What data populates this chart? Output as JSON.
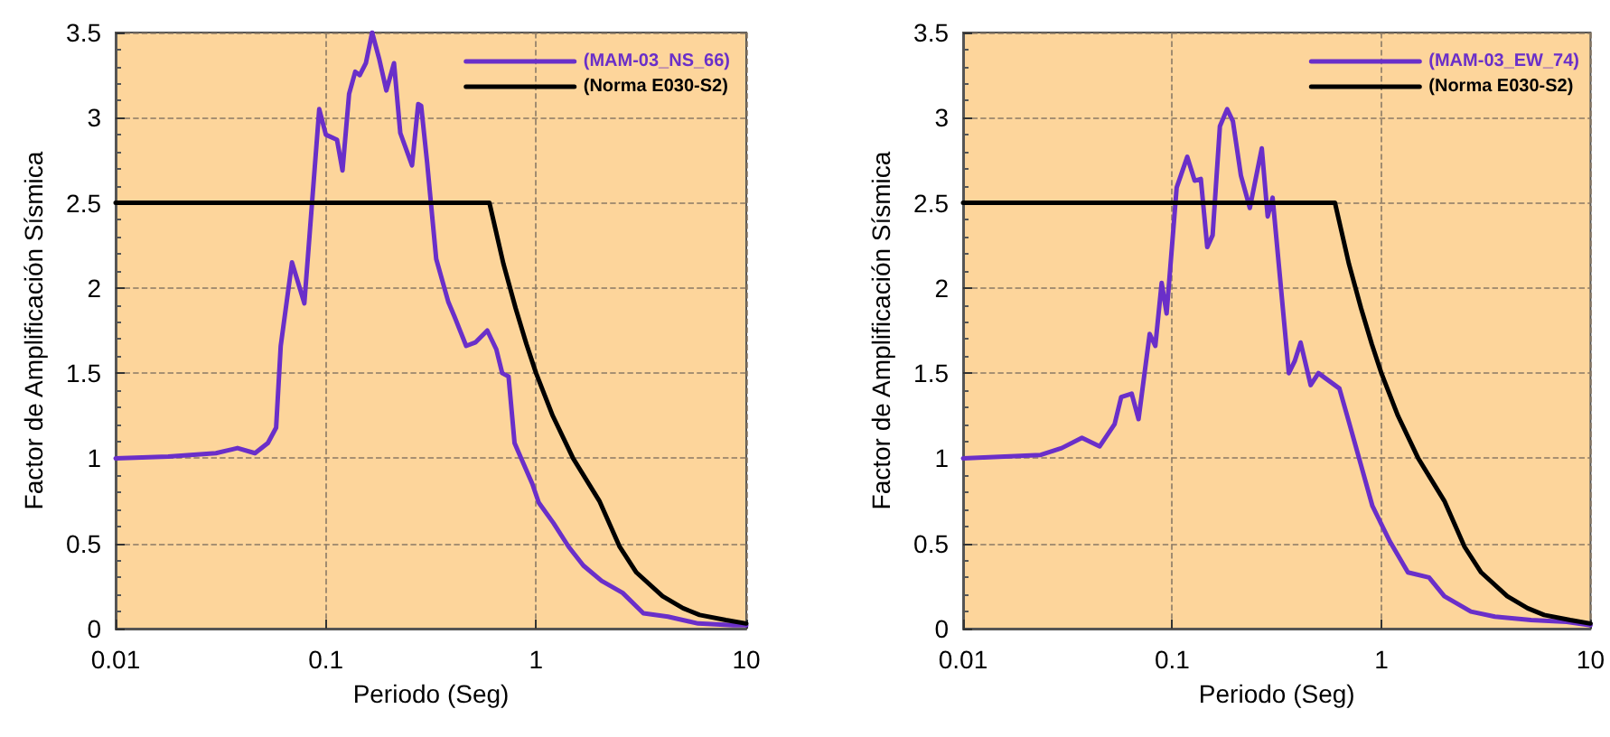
{
  "chart_data": [
    {
      "type": "line",
      "xlabel": "Periodo (Seg)",
      "ylabel": "Factor de Amplificación Sísmica",
      "log": "x",
      "xlim": [
        0.01,
        10
      ],
      "xticks": [
        0.01,
        0.1,
        1,
        10
      ],
      "ylim": [
        0,
        3.5
      ],
      "yticks": [
        0,
        0.5,
        1,
        1.5,
        2,
        2.5,
        3,
        3.5
      ],
      "grid": true,
      "legend": "top right",
      "marker": "none",
      "line_style": "solid",
      "series": [
        {
          "name": "(MAM-03_NS_66)",
          "color": "#6a2fc9",
          "x": [
            0.01,
            0.0178,
            0.03,
            0.038,
            0.046,
            0.053,
            0.058,
            0.061,
            0.069,
            0.079,
            0.093,
            0.1,
            0.113,
            0.12,
            0.129,
            0.138,
            0.145,
            0.155,
            0.166,
            0.179,
            0.194,
            0.211,
            0.226,
            0.257,
            0.275,
            0.284,
            0.303,
            0.335,
            0.382,
            0.41,
            0.465,
            0.514,
            0.586,
            0.647,
            0.69,
            0.74,
            0.79,
            0.87,
            0.96,
            1.03,
            1.21,
            1.43,
            1.68,
            2.05,
            2.58,
            3.24,
            4.24,
            5.9,
            8.7,
            10
          ],
          "values": [
            1.0,
            1.01,
            1.03,
            1.06,
            1.03,
            1.09,
            1.18,
            1.66,
            2.15,
            1.91,
            3.05,
            2.9,
            2.87,
            2.69,
            3.14,
            3.27,
            3.25,
            3.32,
            3.5,
            3.35,
            3.16,
            3.32,
            2.91,
            2.72,
            3.08,
            3.07,
            2.74,
            2.17,
            1.92,
            1.83,
            1.66,
            1.68,
            1.75,
            1.64,
            1.5,
            1.48,
            1.09,
            0.97,
            0.85,
            0.74,
            0.62,
            0.48,
            0.37,
            0.28,
            0.21,
            0.09,
            0.07,
            0.03,
            0.02,
            0.02
          ]
        },
        {
          "name": "(Norma E030-S2)",
          "color": "#000000",
          "x": [
            0.01,
            0.6,
            0.7,
            0.8,
            0.9,
            1,
            1.2,
            1.5,
            2,
            2.5,
            3,
            4,
            5,
            6,
            8,
            10
          ],
          "values": [
            2.5,
            2.5,
            2.14,
            1.88,
            1.67,
            1.5,
            1.25,
            1.0,
            0.75,
            0.48,
            0.33,
            0.19,
            0.12,
            0.08,
            0.05,
            0.03
          ]
        }
      ]
    },
    {
      "type": "line",
      "xlabel": "Periodo (Seg)",
      "ylabel": "Factor de Amplificación Sísmica",
      "log": "x",
      "xlim": [
        0.01,
        10
      ],
      "xticks": [
        0.01,
        0.1,
        1,
        10
      ],
      "ylim": [
        0,
        3.5
      ],
      "yticks": [
        0,
        0.5,
        1,
        1.5,
        2,
        2.5,
        3,
        3.5
      ],
      "grid": true,
      "legend": "top right",
      "marker": "none",
      "line_style": "solid",
      "series": [
        {
          "name": "(MAM-03_EW_74)",
          "color": "#6a2fc9",
          "x": [
            0.01,
            0.0235,
            0.0296,
            0.037,
            0.045,
            0.053,
            0.057,
            0.064,
            0.069,
            0.078,
            0.083,
            0.089,
            0.094,
            0.105,
            0.118,
            0.128,
            0.137,
            0.147,
            0.156,
            0.169,
            0.183,
            0.195,
            0.213,
            0.235,
            0.268,
            0.286,
            0.302,
            0.361,
            0.385,
            0.411,
            0.459,
            0.5,
            0.63,
            0.697,
            0.795,
            0.906,
            1.1,
            1.34,
            1.69,
            2.0,
            2.68,
            3.49,
            5.2,
            7.7,
            10
          ],
          "values": [
            1.0,
            1.02,
            1.06,
            1.12,
            1.07,
            1.2,
            1.36,
            1.38,
            1.23,
            1.73,
            1.66,
            2.03,
            1.85,
            2.59,
            2.77,
            2.63,
            2.64,
            2.24,
            2.31,
            2.95,
            3.05,
            2.98,
            2.66,
            2.47,
            2.82,
            2.42,
            2.53,
            1.5,
            1.57,
            1.68,
            1.43,
            1.5,
            1.41,
            1.22,
            0.97,
            0.72,
            0.51,
            0.33,
            0.3,
            0.19,
            0.1,
            0.07,
            0.05,
            0.04,
            0.02
          ]
        },
        {
          "name": "(Norma E030-S2)",
          "color": "#000000",
          "x": [
            0.01,
            0.6,
            0.7,
            0.8,
            0.9,
            1,
            1.2,
            1.5,
            2,
            2.5,
            3,
            4,
            5,
            6,
            8,
            10
          ],
          "values": [
            2.5,
            2.5,
            2.14,
            1.88,
            1.67,
            1.5,
            1.25,
            1.0,
            0.75,
            0.48,
            0.33,
            0.19,
            0.12,
            0.08,
            0.05,
            0.03
          ]
        }
      ]
    }
  ]
}
